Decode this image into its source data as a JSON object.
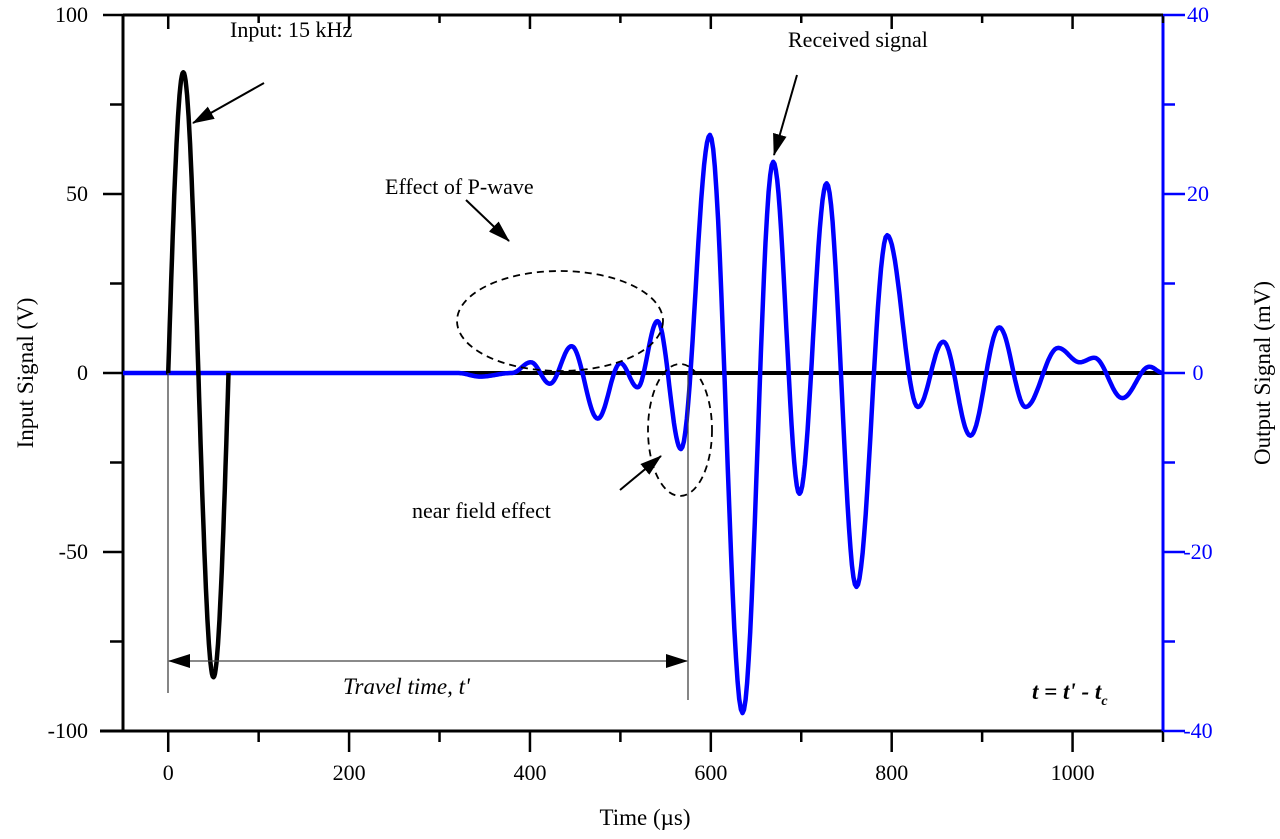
{
  "chart_data": {
    "type": "line",
    "title": "",
    "xlabel": "Time (µs)",
    "ylabel_left": "Input Signal (V)",
    "ylabel_right": "Output Signal (mV)",
    "xlim": [
      -50,
      1100
    ],
    "ylim_left": [
      -100,
      100
    ],
    "ylim_right": [
      -40,
      40
    ],
    "x_ticks": [
      "0",
      "200",
      "400",
      "600",
      "800",
      "1000"
    ],
    "y_left_ticks": [
      "100",
      "50",
      "0",
      "-50",
      "-100"
    ],
    "y_right_ticks": [
      "40",
      "20",
      "0",
      "-20",
      "-40"
    ],
    "grid": false,
    "colors": {
      "input": "#000000",
      "output": "#0000ff",
      "right_axis": "#0000ff"
    },
    "series": [
      {
        "axis": "left",
        "frequency_label": "15 kHz",
        "x": [
          0,
          16.7,
          33.3,
          50,
          66.7,
          1100
        ],
        "y": [
          0,
          84,
          0,
          -85,
          0,
          0
        ]
      },
      {
        "axis": "right",
        "x": [
          -50,
          320,
          345,
          380,
          401,
          422,
          446,
          475,
          500,
          519,
          541,
          567,
          599,
          635,
          669,
          698,
          728,
          761,
          795,
          829,
          857,
          887,
          919,
          948,
          984,
          1008,
          1024,
          1055,
          1085,
          1100
        ],
        "y": [
          0,
          0,
          -0.4,
          0,
          1.2,
          -1.2,
          3.0,
          -5.1,
          1.1,
          -1.6,
          5.8,
          -8.5,
          26.6,
          -38,
          23.6,
          -13.5,
          21.2,
          -23.9,
          15.4,
          -3.8,
          3.5,
          -7.0,
          5.1,
          -3.8,
          2.8,
          1.2,
          1.7,
          -2.8,
          0.7,
          0
        ]
      }
    ],
    "annotations": {
      "input": "Input: 15 kHz",
      "received": "Received signal",
      "pwave": "Effect of P-wave",
      "nearfield": "near field effect",
      "travel": "Travel time, t'",
      "formula_main": "t = t' - t",
      "formula_sub": "c"
    },
    "travel_time_span": [
      0,
      576
    ]
  }
}
